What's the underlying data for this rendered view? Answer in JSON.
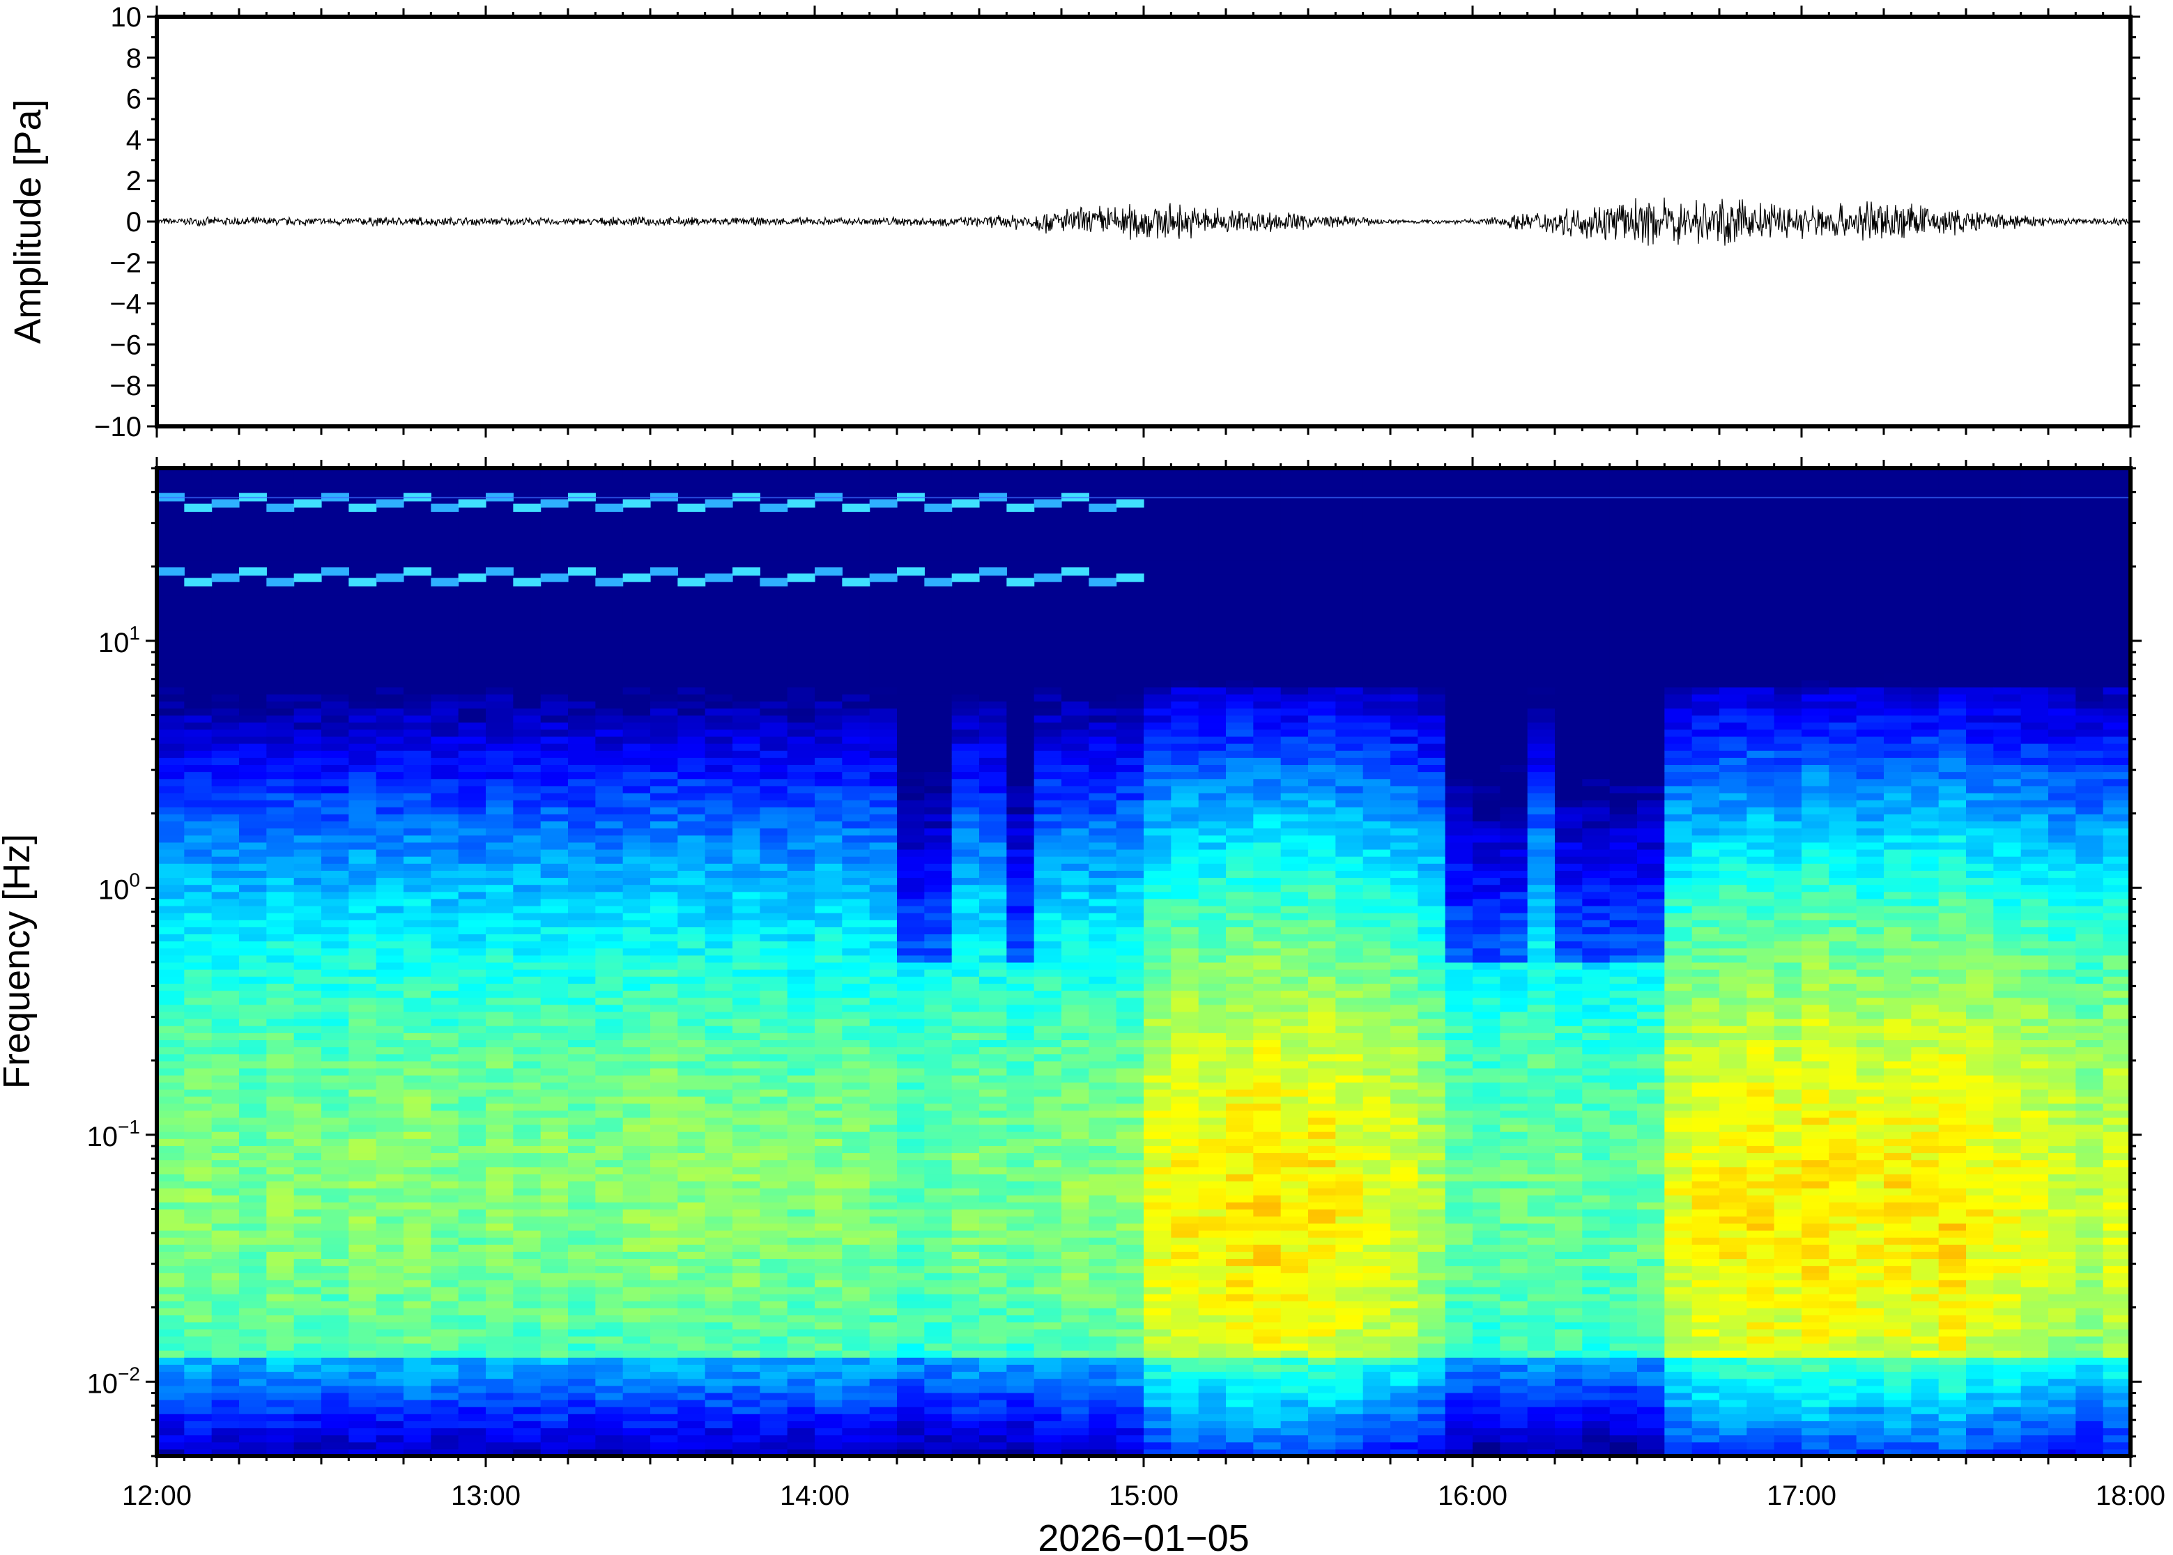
{
  "chart_data": [
    {
      "type": "line",
      "panel": "waveform",
      "title": "",
      "ylabel": "Amplitude [Pa]",
      "xlabel": "",
      "ylim": [
        -10,
        10
      ],
      "yticks": [
        {
          "value": 10,
          "label": "10"
        },
        {
          "value": 8,
          "label": "8"
        },
        {
          "value": 6,
          "label": "6"
        },
        {
          "value": 4,
          "label": "4"
        },
        {
          "value": 2,
          "label": "2"
        },
        {
          "value": 0,
          "label": "0"
        },
        {
          "value": -2,
          "label": "−2"
        },
        {
          "value": -4,
          "label": "−4"
        },
        {
          "value": -6,
          "label": "−6"
        },
        {
          "value": -8,
          "label": "−8"
        },
        {
          "value": -10,
          "label": "−10"
        }
      ],
      "xlim": [
        "12:00",
        "18:00"
      ],
      "series": [
        {
          "x": [
            "12:00",
            "12:15",
            "12:30",
            "12:45",
            "13:00",
            "13:15",
            "13:30",
            "13:45",
            "14:00",
            "14:15",
            "14:30",
            "14:45",
            "15:00",
            "15:15",
            "15:30",
            "15:45",
            "16:00",
            "16:15",
            "16:30",
            "16:45",
            "17:00",
            "17:15",
            "17:30",
            "17:45",
            "18:00"
          ],
          "envelope": [
            0.15,
            0.2,
            0.18,
            0.2,
            0.18,
            0.15,
            0.2,
            0.18,
            0.17,
            0.2,
            0.2,
            0.55,
            0.85,
            0.6,
            0.35,
            0.1,
            0.1,
            0.55,
            0.95,
            1.0,
            0.75,
            0.95,
            0.5,
            0.2,
            0.15
          ]
        }
      ]
    },
    {
      "type": "heatmap",
      "panel": "spectrogram",
      "title": "",
      "ylabel": "Frequency [Hz]",
      "xlabel": "2026−01−05",
      "yscale": "log",
      "ylim": [
        0.005,
        50
      ],
      "yticks": [
        {
          "value": 0.01,
          "base": "10",
          "exp": "−2"
        },
        {
          "value": 0.1,
          "base": "10",
          "exp": "−1"
        },
        {
          "value": 1,
          "base": "10",
          "exp": "0"
        },
        {
          "value": 10,
          "base": "10",
          "exp": "1"
        }
      ],
      "xlim": [
        "12:00",
        "18:00"
      ],
      "xticks": [
        "12:00",
        "13:00",
        "14:00",
        "15:00",
        "16:00",
        "17:00",
        "18:00"
      ],
      "colormap": [
        "#00008f",
        "#0000ff",
        "#0080ff",
        "#00ffff",
        "#80ff80",
        "#ffff00",
        "#ff8000"
      ],
      "time_bins": 72,
      "column_activity": [
        0.15,
        0.2,
        0.15,
        0.1,
        0.2,
        0.15,
        0.1,
        0.2,
        0.15,
        0.25,
        0.15,
        0.1,
        0.2,
        0.15,
        0.2,
        0.1,
        0.15,
        0.2,
        0.25,
        0.2,
        0.15,
        0.2,
        0.15,
        0.1,
        0.2,
        0.15,
        0.1,
        0.0,
        0.05,
        0.15,
        0.1,
        0.05,
        0.15,
        0.2,
        0.15,
        0.2,
        0.65,
        0.75,
        0.7,
        0.8,
        0.85,
        0.75,
        0.8,
        0.7,
        0.6,
        0.55,
        0.35,
        0.05,
        0.0,
        0.05,
        0.1,
        0.05,
        0.0,
        0.0,
        0.05,
        0.6,
        0.7,
        0.75,
        0.8,
        0.7,
        0.85,
        0.75,
        0.7,
        0.8,
        0.75,
        0.85,
        0.7,
        0.65,
        0.6,
        0.5,
        0.4,
        0.55
      ],
      "tonal_lines_hz": [
        18,
        36
      ],
      "tonal_lines_until": "14:55"
    }
  ]
}
